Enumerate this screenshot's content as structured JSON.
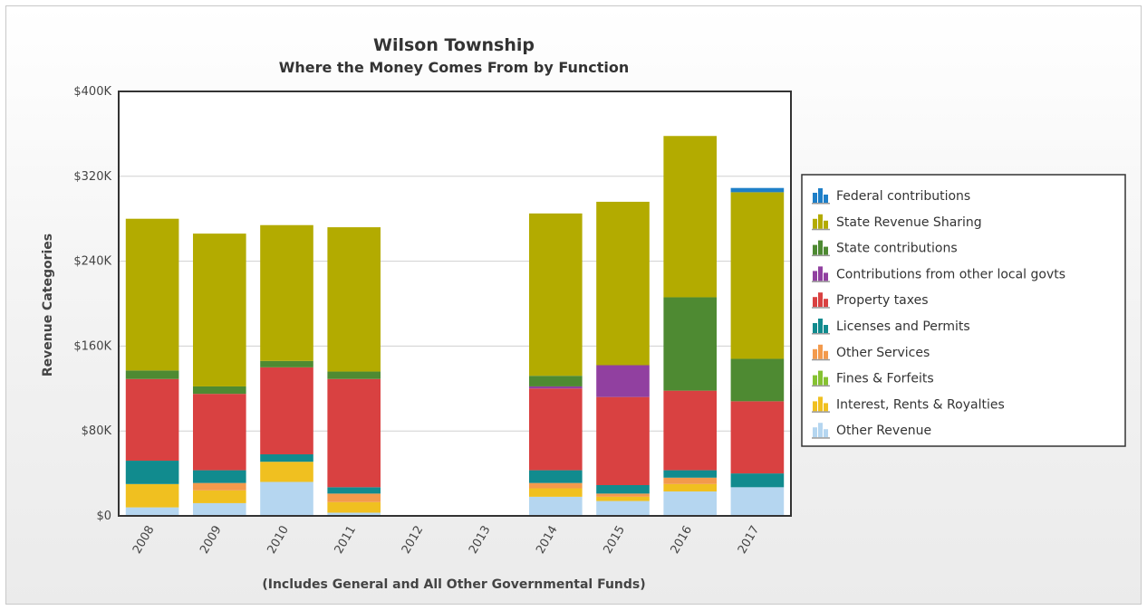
{
  "chart_data": {
    "type": "bar",
    "stacked": true,
    "title": "Wilson Township",
    "subtitle": "Where the Money Comes From by Function",
    "ylabel": "Revenue Categories",
    "xlabel": "(Includes General and All Other Governmental Funds)",
    "categories": [
      "2008",
      "2009",
      "2010",
      "2011",
      "2012",
      "2013",
      "2014",
      "2015",
      "2016",
      "2017"
    ],
    "ylim": [
      0,
      400000
    ],
    "yticks": [
      0,
      80000,
      160000,
      240000,
      320000,
      400000
    ],
    "ytick_labels": [
      "$0",
      "$80K",
      "$160K",
      "$240K",
      "$320K",
      "$400K"
    ],
    "grid": true,
    "legend_position": "right",
    "series": [
      {
        "name": "Other Revenue",
        "color": "#b5d6f0",
        "values": [
          8000,
          12000,
          32000,
          3000,
          0,
          0,
          18000,
          14000,
          23000,
          27000
        ]
      },
      {
        "name": "Interest, Rents & Royalties",
        "color": "#f0c020",
        "values": [
          22000,
          12000,
          19000,
          10000,
          0,
          0,
          8000,
          4000,
          7000,
          0
        ]
      },
      {
        "name": "Fines & Forfeits",
        "color": "#86c232",
        "values": [
          0,
          0,
          0,
          0,
          0,
          0,
          0,
          0,
          0,
          0
        ]
      },
      {
        "name": "Other Services",
        "color": "#f39a4c",
        "values": [
          0,
          7000,
          0,
          8000,
          0,
          0,
          5000,
          3000,
          6000,
          0
        ]
      },
      {
        "name": "Licenses and Permits",
        "color": "#118b8e",
        "values": [
          22000,
          12000,
          7000,
          6000,
          0,
          0,
          12000,
          8000,
          7000,
          13000
        ]
      },
      {
        "name": "Property taxes",
        "color": "#d94141",
        "values": [
          77000,
          72000,
          82000,
          102000,
          0,
          0,
          77000,
          83000,
          75000,
          68000
        ]
      },
      {
        "name": "Contributions from other local govts",
        "color": "#9140a0",
        "values": [
          0,
          0,
          0,
          0,
          0,
          0,
          2000,
          30000,
          0,
          0
        ]
      },
      {
        "name": "State contributions",
        "color": "#4e8a32",
        "values": [
          8000,
          7000,
          6000,
          7000,
          0,
          0,
          10000,
          0,
          88000,
          40000
        ]
      },
      {
        "name": "State Revenue Sharing",
        "color": "#b3ab00",
        "values": [
          143000,
          144000,
          128000,
          136000,
          0,
          0,
          153000,
          154000,
          152000,
          157000
        ]
      },
      {
        "name": "Federal contributions",
        "color": "#1e7fc8",
        "values": [
          0,
          0,
          0,
          0,
          0,
          0,
          0,
          0,
          0,
          4000
        ]
      }
    ]
  }
}
